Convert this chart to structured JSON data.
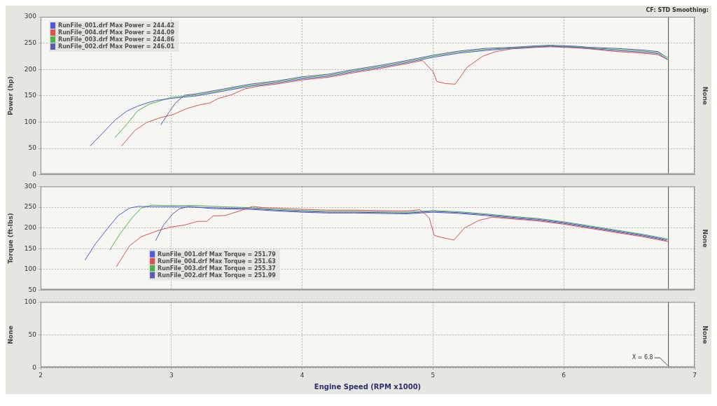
{
  "chart_data": [
    {
      "type": "line",
      "ylabel": "Power (hp)",
      "y2label": "None",
      "annotations": [
        "CF: STD Smoothing:"
      ],
      "xlim": [
        2,
        7
      ],
      "xticks": [
        2,
        3,
        4,
        5,
        6,
        7
      ],
      "ylim": [
        0,
        300
      ],
      "yticks": [
        0,
        50,
        100,
        150,
        200,
        250,
        300
      ],
      "tick_labels": "y",
      "grid": true,
      "legend": "top left",
      "ref_lines": [
        {
          "axis": "x",
          "value": 6.8
        }
      ],
      "series": [
        {
          "name": "RunFile_001.drf Max Power = 244.42",
          "color": "#4f5bd5",
          "x": [
            2.38,
            2.47,
            2.57,
            2.66,
            2.74,
            2.81,
            2.88,
            3.0,
            3.2,
            3.4,
            3.6,
            3.8,
            4.0,
            4.2,
            4.4,
            4.6,
            4.8,
            5.0,
            5.2,
            5.4,
            5.6,
            5.8,
            5.9,
            6.0,
            6.1,
            6.2,
            6.4,
            6.6,
            6.72,
            6.79
          ],
          "values": [
            55,
            78,
            104,
            121,
            130,
            136,
            141,
            145,
            150,
            159,
            168,
            174,
            182,
            187,
            196,
            204,
            213,
            223,
            231,
            236,
            240,
            243,
            244,
            243,
            242,
            240,
            236,
            233,
            230,
            220
          ]
        },
        {
          "name": "RunFile_004.drf Max Power = 244.09",
          "color": "#d9534f",
          "x": [
            2.62,
            2.72,
            2.81,
            2.91,
            3.02,
            3.12,
            3.22,
            3.29,
            3.36,
            3.46,
            3.56,
            3.66,
            3.8,
            4.0,
            4.2,
            4.4,
            4.6,
            4.8,
            4.92,
            5.0,
            5.03,
            5.1,
            5.17,
            5.26,
            5.38,
            5.48,
            5.6,
            5.8,
            5.9,
            6.0,
            6.1,
            6.2,
            6.4,
            6.6,
            6.72,
            6.8
          ],
          "values": [
            55,
            84,
            99,
            108,
            115,
            126,
            133,
            136,
            145,
            152,
            163,
            168,
            172,
            180,
            185,
            194,
            202,
            211,
            217,
            196,
            177,
            173,
            172,
            204,
            225,
            234,
            239,
            242,
            243,
            242,
            241,
            239,
            234,
            231,
            228,
            218
          ]
        },
        {
          "name": "RunFile_003.drf Max Power = 244.86",
          "color": "#4caf50",
          "x": [
            2.57,
            2.66,
            2.74,
            2.83,
            3.0,
            3.2,
            3.4,
            3.6,
            3.8,
            4.0,
            4.2,
            4.4,
            4.6,
            4.8,
            5.0,
            5.2,
            5.4,
            5.6,
            5.8,
            5.9,
            6.0,
            6.1,
            6.2,
            6.4,
            6.6,
            6.72,
            6.8
          ],
          "values": [
            71,
            96,
            121,
            134,
            147,
            152,
            161,
            170,
            176,
            184,
            189,
            198,
            206,
            215,
            225,
            233,
            238,
            241,
            244,
            245,
            244,
            243,
            241,
            238,
            235,
            232,
            222
          ]
        },
        {
          "name": "RunFile_002.drf Max Power = 246.01",
          "color": "#5c5ca8",
          "x": [
            2.92,
            2.98,
            3.03,
            3.1,
            3.2,
            3.4,
            3.6,
            3.8,
            4.0,
            4.2,
            4.4,
            4.6,
            4.8,
            5.0,
            5.2,
            5.4,
            5.6,
            5.8,
            5.9,
            6.0,
            6.1,
            6.2,
            6.4,
            6.6,
            6.72,
            6.78
          ],
          "values": [
            95,
            118,
            136,
            151,
            154,
            163,
            172,
            178,
            186,
            191,
            200,
            208,
            217,
            227,
            235,
            240,
            242,
            245,
            246,
            245,
            244,
            242,
            240,
            237,
            234,
            224
          ]
        }
      ]
    },
    {
      "type": "line",
      "ylabel": "Torque (ft-lbs)",
      "y2label": "None",
      "xlim": [
        2,
        7
      ],
      "xticks": [
        2,
        3,
        4,
        5,
        6,
        7
      ],
      "ylim": [
        50,
        300
      ],
      "yticks": [
        50,
        100,
        150,
        200,
        250,
        300
      ],
      "tick_labels": "y",
      "grid": true,
      "legend": "bottom left",
      "ref_lines": [
        {
          "axis": "x",
          "value": 6.8
        }
      ],
      "series": [
        {
          "name": "RunFile_001.drf Max Torque = 251.79",
          "color": "#4f5bd5",
          "x": [
            2.34,
            2.42,
            2.51,
            2.59,
            2.68,
            2.75,
            2.9,
            3.0,
            3.2,
            3.4,
            3.6,
            3.8,
            4.0,
            4.2,
            4.4,
            4.6,
            4.8,
            5.0,
            5.2,
            5.4,
            5.6,
            5.8,
            6.0,
            6.2,
            6.4,
            6.6,
            6.72,
            6.79
          ],
          "values": [
            123,
            162,
            198,
            229,
            248,
            252,
            251,
            251,
            250,
            248,
            247,
            243,
            240,
            238,
            238,
            237,
            236,
            240,
            237,
            232,
            226,
            221,
            213,
            203,
            193,
            183,
            176,
            171
          ]
        },
        {
          "name": "RunFile_004.drf Max Torque = 251.63",
          "color": "#d9534f",
          "x": [
            2.58,
            2.68,
            2.77,
            2.89,
            2.99,
            3.1,
            3.2,
            3.27,
            3.32,
            3.41,
            3.52,
            3.62,
            3.7,
            3.8,
            4.0,
            4.2,
            4.4,
            4.6,
            4.8,
            4.9,
            4.97,
            5.01,
            5.07,
            5.16,
            5.24,
            5.35,
            5.45,
            5.6,
            5.8,
            6.0,
            6.2,
            6.4,
            6.6,
            6.72,
            6.8
          ],
          "values": [
            107,
            157,
            179,
            193,
            202,
            207,
            216,
            216,
            229,
            230,
            241,
            252,
            249,
            248,
            245,
            243,
            243,
            242,
            241,
            244,
            225,
            182,
            177,
            171,
            200,
            218,
            226,
            222,
            217,
            209,
            199,
            189,
            179,
            172,
            167
          ]
        },
        {
          "name": "RunFile_003.drf Max Torque = 255.37",
          "color": "#4caf50",
          "x": [
            2.53,
            2.61,
            2.7,
            2.77,
            2.85,
            2.95,
            3.05,
            3.2,
            3.4,
            3.6,
            3.8,
            4.0,
            4.2,
            4.4,
            4.6,
            4.8,
            5.0,
            5.2,
            5.4,
            5.6,
            5.8,
            6.0,
            6.2,
            6.4,
            6.6,
            6.72,
            6.8
          ],
          "values": [
            148,
            187,
            225,
            248,
            255,
            254,
            254,
            254,
            251,
            249,
            245,
            242,
            240,
            240,
            239,
            238,
            242,
            239,
            234,
            228,
            223,
            215,
            205,
            195,
            185,
            178,
            173
          ]
        },
        {
          "name": "RunFile_002.drf Max Torque = 251.99",
          "color": "#5c5ca8",
          "x": [
            2.88,
            2.94,
            3.01,
            3.06,
            3.13,
            3.3,
            3.4,
            3.6,
            3.8,
            4.0,
            4.2,
            4.4,
            4.6,
            4.8,
            5.0,
            5.2,
            5.4,
            5.6,
            5.8,
            6.0,
            6.2,
            6.4,
            6.6,
            6.72,
            6.78
          ],
          "values": [
            170,
            207,
            234,
            246,
            252,
            247,
            246,
            245,
            241,
            238,
            236,
            236,
            235,
            234,
            238,
            235,
            230,
            224,
            219,
            211,
            201,
            191,
            181,
            174,
            170
          ]
        }
      ]
    },
    {
      "type": "line",
      "xlabel": "Engine Speed (RPM x1000)",
      "ylabel": "None",
      "y2label": "None",
      "xlim": [
        2,
        7
      ],
      "xticks": [
        2,
        3,
        4,
        5,
        6,
        7
      ],
      "ylim": [
        0,
        100
      ],
      "yticks": [
        0,
        50,
        100
      ],
      "grid": true,
      "ref_lines": [
        {
          "axis": "x",
          "value": 6.8,
          "label": "X = 6.8"
        }
      ]
    }
  ]
}
